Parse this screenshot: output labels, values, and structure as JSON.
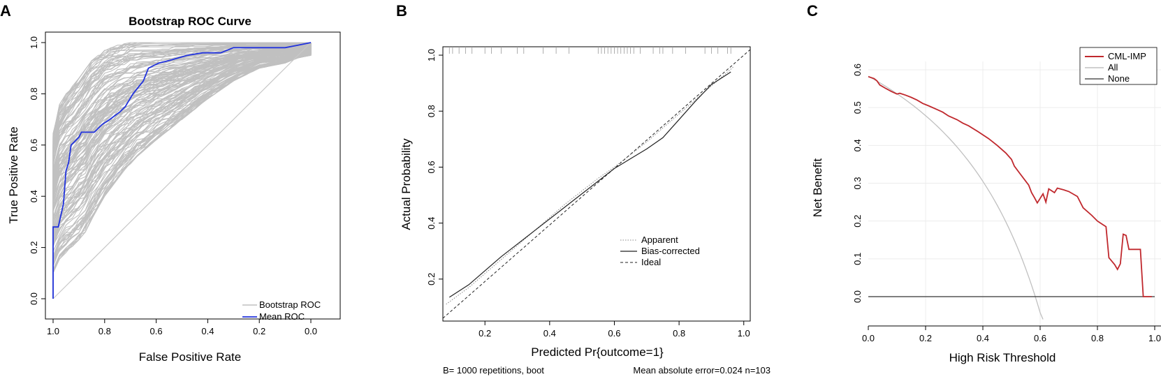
{
  "panels": {
    "a": {
      "letter": "A"
    },
    "b": {
      "letter": "B"
    },
    "c": {
      "letter": "C"
    }
  },
  "chart_data": [
    {
      "type": "line",
      "title": "Bootstrap ROC Curve",
      "xlabel": "False Positive Rate",
      "ylabel": "True Positive Rate",
      "xlim": [
        1.0,
        0.0
      ],
      "ylim": [
        0.0,
        1.0
      ],
      "x_reversed": true,
      "xticks": [
        "1.0",
        "0.8",
        "0.6",
        "0.4",
        "0.2",
        "0.0"
      ],
      "yticks": [
        "0.0",
        "0.2",
        "0.4",
        "0.6",
        "0.8",
        "1.0"
      ],
      "legend": {
        "position": "bottom-right",
        "entries": [
          "Bootstrap ROC",
          "Mean ROC"
        ]
      },
      "colors": {
        "bootstrap": "#c0c0c0",
        "mean": "#2233dd",
        "diagonal": "#c8c8c8"
      },
      "band_lower": [
        [
          1.0,
          0.1
        ],
        [
          0.98,
          0.15
        ],
        [
          0.93,
          0.2
        ],
        [
          0.88,
          0.25
        ],
        [
          0.84,
          0.33
        ],
        [
          0.8,
          0.4
        ],
        [
          0.74,
          0.48
        ],
        [
          0.68,
          0.55
        ],
        [
          0.6,
          0.62
        ],
        [
          0.5,
          0.7
        ],
        [
          0.4,
          0.78
        ],
        [
          0.3,
          0.85
        ],
        [
          0.2,
          0.9
        ],
        [
          0.1,
          0.92
        ],
        [
          0.05,
          0.94
        ],
        [
          0.0,
          0.95
        ]
      ],
      "band_upper": [
        [
          1.0,
          0.65
        ],
        [
          0.98,
          0.75
        ],
        [
          0.95,
          0.8
        ],
        [
          0.9,
          0.86
        ],
        [
          0.85,
          0.93
        ],
        [
          0.8,
          0.97
        ],
        [
          0.75,
          0.99
        ],
        [
          0.7,
          1.0
        ],
        [
          0.0,
          1.0
        ]
      ],
      "series": [
        {
          "name": "Mean ROC",
          "points": [
            [
              1.0,
              0.0
            ],
            [
              1.0,
              0.28
            ],
            [
              0.98,
              0.28
            ],
            [
              0.96,
              0.37
            ],
            [
              0.95,
              0.5
            ],
            [
              0.94,
              0.53
            ],
            [
              0.93,
              0.6
            ],
            [
              0.9,
              0.63
            ],
            [
              0.89,
              0.65
            ],
            [
              0.84,
              0.65
            ],
            [
              0.81,
              0.68
            ],
            [
              0.78,
              0.7
            ],
            [
              0.74,
              0.73
            ],
            [
              0.72,
              0.75
            ],
            [
              0.69,
              0.8
            ],
            [
              0.65,
              0.85
            ],
            [
              0.63,
              0.9
            ],
            [
              0.61,
              0.91
            ],
            [
              0.59,
              0.92
            ],
            [
              0.55,
              0.93
            ],
            [
              0.48,
              0.95
            ],
            [
              0.42,
              0.96
            ],
            [
              0.35,
              0.96
            ],
            [
              0.3,
              0.98
            ],
            [
              0.2,
              0.98
            ],
            [
              0.1,
              0.98
            ],
            [
              0.05,
              0.99
            ],
            [
              0.0,
              1.0
            ]
          ]
        }
      ],
      "diagonal": [
        [
          1.0,
          0.0
        ],
        [
          0.0,
          1.0
        ]
      ]
    },
    {
      "type": "line",
      "xlabel": "Predicted Pr{outcome=1}",
      "ylabel": "Actual Probability",
      "xlim": [
        0.07,
        1.02
      ],
      "ylim": [
        0.05,
        1.03
      ],
      "xticks": [
        "0.2",
        "0.4",
        "0.6",
        "0.8",
        "1.0"
      ],
      "yticks": [
        "0.2",
        "0.4",
        "0.6",
        "0.8",
        "1.0"
      ],
      "legend": {
        "position": "center-right",
        "entries": [
          "Apparent",
          "Bias-corrected",
          "Ideal"
        ]
      },
      "rug_x": [
        0.09,
        0.1,
        0.12,
        0.14,
        0.16,
        0.2,
        0.22,
        0.25,
        0.3,
        0.32,
        0.38,
        0.42,
        0.46,
        0.55,
        0.56,
        0.57,
        0.58,
        0.59,
        0.6,
        0.61,
        0.62,
        0.63,
        0.64,
        0.65,
        0.66,
        0.68,
        0.72,
        0.74,
        0.75,
        0.78,
        0.82,
        0.88,
        0.9,
        0.92,
        0.95,
        0.96
      ],
      "series": [
        {
          "name": "Apparent",
          "points": [
            [
              0.08,
              0.11
            ],
            [
              0.15,
              0.17
            ],
            [
              0.25,
              0.27
            ],
            [
              0.35,
              0.37
            ],
            [
              0.45,
              0.47
            ],
            [
              0.55,
              0.56
            ],
            [
              0.6,
              0.6
            ],
            [
              0.7,
              0.69
            ],
            [
              0.8,
              0.79
            ],
            [
              0.9,
              0.89
            ],
            [
              0.97,
              0.96
            ]
          ]
        },
        {
          "name": "Bias-corrected",
          "points": [
            [
              0.09,
              0.135
            ],
            [
              0.15,
              0.18
            ],
            [
              0.25,
              0.28
            ],
            [
              0.35,
              0.37
            ],
            [
              0.45,
              0.46
            ],
            [
              0.55,
              0.55
            ],
            [
              0.6,
              0.595
            ],
            [
              0.65,
              0.63
            ],
            [
              0.7,
              0.665
            ],
            [
              0.75,
              0.705
            ],
            [
              0.8,
              0.77
            ],
            [
              0.85,
              0.835
            ],
            [
              0.9,
              0.895
            ],
            [
              0.96,
              0.94
            ]
          ]
        },
        {
          "name": "Ideal",
          "points": [
            [
              0.06,
              0.06
            ],
            [
              1.02,
              1.02
            ]
          ]
        }
      ],
      "footer_left": "B= 1000 repetitions, boot",
      "footer_right": "Mean absolute error=0.024 n=103"
    },
    {
      "type": "line",
      "xlabel": "High Risk Threshold",
      "ylabel": "Net Benefit",
      "xlim": [
        -0.02,
        1.02
      ],
      "ylim": [
        -0.06,
        0.62
      ],
      "xticks": [
        "0.0",
        "0.2",
        "0.4",
        "0.6",
        "0.8",
        "1.0"
      ],
      "yticks": [
        "0.0",
        "0.1",
        "0.2",
        "0.3",
        "0.4",
        "0.5",
        "0.6"
      ],
      "grid": true,
      "legend": {
        "position": "top-right",
        "entries": [
          "CML-IMP",
          "All",
          "None"
        ]
      },
      "colors": {
        "model": "#c0282d",
        "all": "#c0c0c0",
        "none": "#333333"
      },
      "prevalence": 0.583,
      "series": [
        {
          "name": "CML-IMP",
          "points": [
            [
              0.0,
              0.582
            ],
            [
              0.02,
              0.577
            ],
            [
              0.03,
              0.571
            ],
            [
              0.04,
              0.56
            ],
            [
              0.06,
              0.551
            ],
            [
              0.08,
              0.543
            ],
            [
              0.1,
              0.536
            ],
            [
              0.11,
              0.538
            ],
            [
              0.13,
              0.533
            ],
            [
              0.15,
              0.527
            ],
            [
              0.17,
              0.52
            ],
            [
              0.19,
              0.511
            ],
            [
              0.21,
              0.505
            ],
            [
              0.24,
              0.495
            ],
            [
              0.26,
              0.488
            ],
            [
              0.28,
              0.478
            ],
            [
              0.31,
              0.468
            ],
            [
              0.33,
              0.459
            ],
            [
              0.35,
              0.452
            ],
            [
              0.38,
              0.438
            ],
            [
              0.42,
              0.418
            ],
            [
              0.45,
              0.4
            ],
            [
              0.48,
              0.38
            ],
            [
              0.5,
              0.363
            ],
            [
              0.51,
              0.345
            ],
            [
              0.53,
              0.325
            ],
            [
              0.55,
              0.305
            ],
            [
              0.56,
              0.295
            ],
            [
              0.57,
              0.275
            ],
            [
              0.58,
              0.262
            ],
            [
              0.59,
              0.248
            ],
            [
              0.6,
              0.26
            ],
            [
              0.61,
              0.272
            ],
            [
              0.62,
              0.25
            ],
            [
              0.63,
              0.285
            ],
            [
              0.65,
              0.275
            ],
            [
              0.66,
              0.287
            ],
            [
              0.68,
              0.283
            ],
            [
              0.7,
              0.278
            ],
            [
              0.73,
              0.265
            ],
            [
              0.75,
              0.235
            ],
            [
              0.78,
              0.215
            ],
            [
              0.8,
              0.2
            ],
            [
              0.82,
              0.19
            ],
            [
              0.83,
              0.185
            ],
            [
              0.84,
              0.103
            ],
            [
              0.86,
              0.085
            ],
            [
              0.87,
              0.072
            ],
            [
              0.88,
              0.087
            ],
            [
              0.89,
              0.165
            ],
            [
              0.9,
              0.162
            ],
            [
              0.91,
              0.125
            ],
            [
              0.95,
              0.125
            ],
            [
              0.96,
              0.0
            ],
            [
              0.99,
              0.0
            ]
          ]
        },
        {
          "name": "All",
          "points": []
        },
        {
          "name": "None",
          "points": [
            [
              0.0,
              0.0
            ],
            [
              1.0,
              0.0
            ]
          ]
        }
      ]
    }
  ]
}
